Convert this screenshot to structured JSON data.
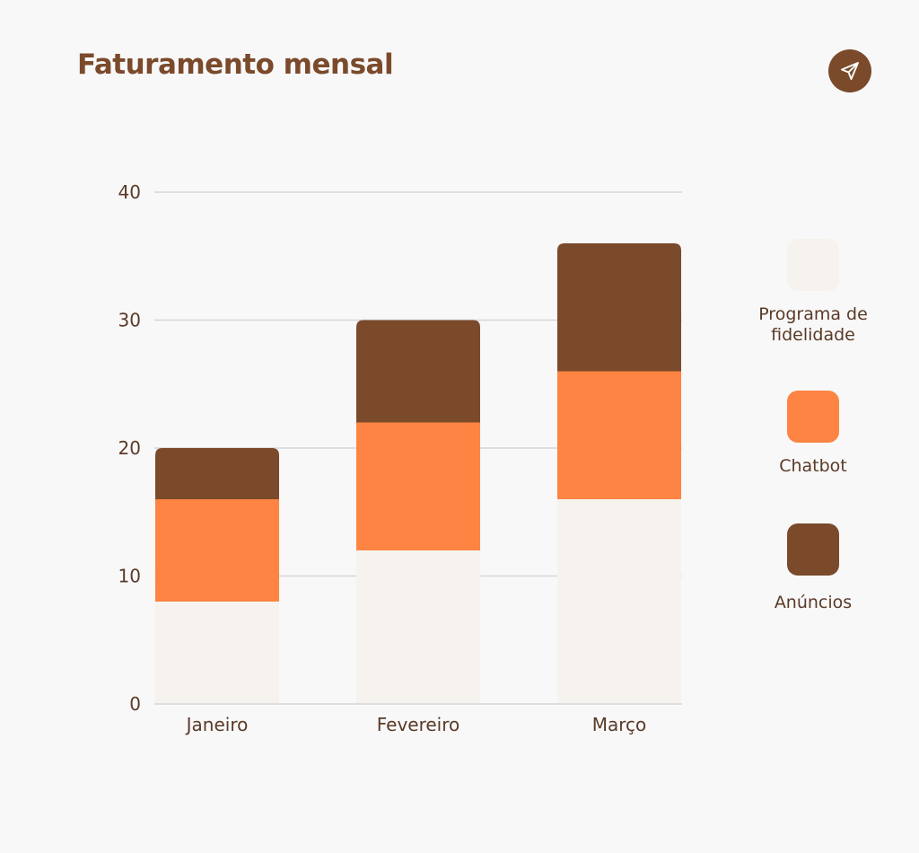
{
  "header": {
    "title": "Faturamento mensal",
    "share_icon": "send-icon"
  },
  "colors": {
    "background": "#f8f8f9",
    "title": "#7a4a2b",
    "grid": "#d6d6da",
    "axis_text": "#5a3a26"
  },
  "chart_data": {
    "type": "bar",
    "stacked": true,
    "title": "Faturamento mensal",
    "xlabel": "",
    "ylabel": "",
    "categories": [
      "Janeiro",
      "Fevereiro",
      "Março"
    ],
    "ylim": [
      0,
      40
    ],
    "yticks": [
      0,
      10,
      20,
      30,
      40
    ],
    "grid": true,
    "legend_position": "right",
    "series": [
      {
        "name": "Programa de fidelidade",
        "values": [
          8,
          12,
          16
        ],
        "color": "#f6f3ee",
        "label_lines": [
          "Programa de",
          "fidelidade"
        ]
      },
      {
        "name": "Chatbot",
        "values": [
          8,
          10,
          10
        ],
        "color": "#fd8442",
        "label_lines": [
          "Chatbot"
        ]
      },
      {
        "name": "Anúncios",
        "values": [
          4,
          8,
          10
        ],
        "color": "#7a4a2b",
        "label_lines": [
          "Anúncios"
        ]
      }
    ]
  }
}
